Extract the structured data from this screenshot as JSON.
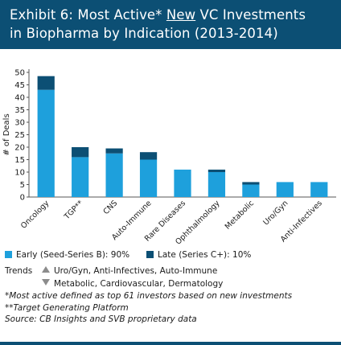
{
  "header": {
    "title_prefix": "Exhibit 6: Most Active* ",
    "title_underlined": "New",
    "title_suffix": " VC Investments",
    "title_line2": "in Biopharma by Indication (2013-2014)"
  },
  "chart_data": {
    "type": "bar",
    "stacked": true,
    "ylabel": "# of Deals",
    "ylim": [
      0,
      50
    ],
    "yticks": [
      0,
      5,
      10,
      15,
      20,
      25,
      30,
      35,
      40,
      45,
      50
    ],
    "categories": [
      "Oncology",
      "TGP**",
      "CNS",
      "Auto-Immune",
      "Rare Diseases",
      "Ophthalmology",
      "Metabolic",
      "Uro/Gyn",
      "Anti-Infectives"
    ],
    "series": [
      {
        "name": "Early (Seed-Series B): 90%",
        "color": "#1ea0dc",
        "values": [
          43,
          16,
          17.5,
          15,
          11,
          10,
          5,
          6,
          6
        ]
      },
      {
        "name": "Late (Series C+): 10%",
        "color": "#0c4f74",
        "values": [
          5.5,
          4,
          2,
          3,
          0,
          1,
          1,
          0,
          0
        ]
      }
    ],
    "legend_position": "bottom",
    "grid": false
  },
  "legend": {
    "early": "Early (Seed-Series B): 90%",
    "late": "Late (Series C+): 10%",
    "trends_label": "Trends",
    "trend_up_text": "Uro/Gyn, Anti-Infectives, Auto-Immune",
    "trend_down_text": "Metabolic, Cardiovascular, Dermatology",
    "trend_up_icon": "triangle-up",
    "trend_down_icon": "triangle-down"
  },
  "notes": [
    "*Most active defined as top 61 investors based on new investments",
    "**Target Generating Platform",
    "Source: CB Insights and SVB proprietary data"
  ],
  "colors": {
    "banner": "#0c4f74",
    "early": "#1ea0dc",
    "late": "#0c4f74",
    "trend_icon": "#8c8c8c"
  }
}
